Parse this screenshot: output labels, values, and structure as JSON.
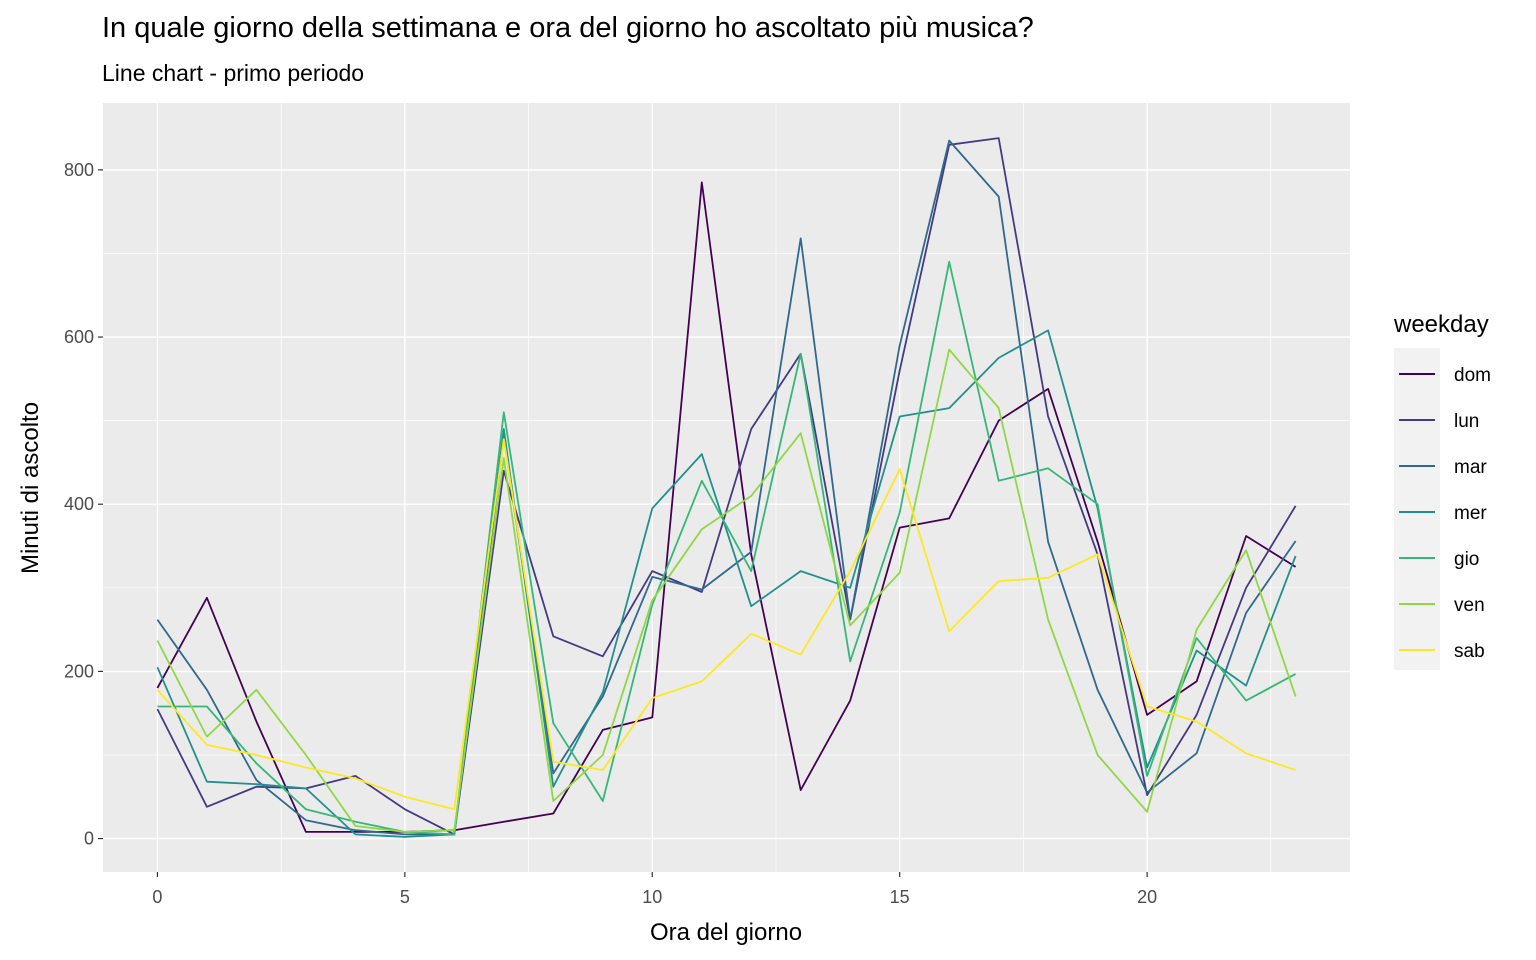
{
  "title": "In quale giorno della settimana e ora del giorno ho ascoltato più musica?",
  "subtitle": "Line chart - primo periodo",
  "chart_data": {
    "type": "line",
    "title": "In quale giorno della settimana e ora del giorno ho ascoltato più musica?",
    "subtitle": "Line chart - primo periodo",
    "xlabel": "Ora del giorno",
    "ylabel": "Minuti di ascolto",
    "xlim": [
      -1.1,
      24.1
    ],
    "ylim": [
      -40,
      880
    ],
    "x_ticks": [
      0,
      5,
      10,
      15,
      20
    ],
    "y_ticks": [
      0,
      200,
      400,
      600,
      800
    ],
    "grid": true,
    "legend": {
      "title": "weekday",
      "position": "right"
    },
    "x": [
      0,
      1,
      2,
      3,
      4,
      5,
      6,
      7,
      8,
      9,
      10,
      11,
      12,
      13,
      14,
      15,
      16,
      17,
      18,
      19,
      20,
      21,
      22,
      23
    ],
    "series": [
      {
        "name": "dom",
        "color": "#440154",
        "values": [
          180,
          288,
          140,
          8,
          8,
          8,
          10,
          20,
          30,
          130,
          145,
          785,
          340,
          58,
          165,
          372,
          383,
          500,
          538,
          355,
          148,
          188,
          362,
          325
        ]
      },
      {
        "name": "lun",
        "color": "#443A83",
        "values": [
          155,
          38,
          62,
          60,
          75,
          35,
          5,
          440,
          242,
          218,
          320,
          295,
          490,
          580,
          262,
          560,
          830,
          838,
          505,
          340,
          52,
          148,
          300,
          398
        ]
      },
      {
        "name": "mar",
        "color": "#31688E",
        "values": [
          262,
          178,
          70,
          22,
          10,
          5,
          5,
          480,
          78,
          170,
          313,
          298,
          343,
          718,
          262,
          590,
          835,
          768,
          355,
          178,
          55,
          102,
          270,
          356
        ]
      },
      {
        "name": "mer",
        "color": "#21908C",
        "values": [
          205,
          68,
          65,
          60,
          5,
          2,
          5,
          490,
          62,
          175,
          395,
          460,
          278,
          320,
          300,
          505,
          515,
          575,
          608,
          395,
          85,
          225,
          183,
          338
        ]
      },
      {
        "name": "gio",
        "color": "#35B779",
        "values": [
          158,
          158,
          90,
          35,
          20,
          8,
          5,
          510,
          138,
          45,
          280,
          428,
          320,
          580,
          212,
          390,
          690,
          428,
          443,
          400,
          75,
          240,
          165,
          197
        ]
      },
      {
        "name": "ven",
        "color": "#8FD744",
        "values": [
          237,
          122,
          178,
          100,
          15,
          8,
          10,
          455,
          45,
          100,
          285,
          370,
          410,
          485,
          255,
          318,
          585,
          515,
          262,
          100,
          32,
          250,
          345,
          170
        ]
      },
      {
        "name": "sab",
        "color": "#FDE725",
        "values": [
          178,
          112,
          100,
          85,
          72,
          50,
          35,
          478,
          92,
          82,
          168,
          188,
          245,
          220,
          320,
          442,
          248,
          308,
          312,
          340,
          158,
          140,
          102,
          82
        ]
      }
    ]
  }
}
